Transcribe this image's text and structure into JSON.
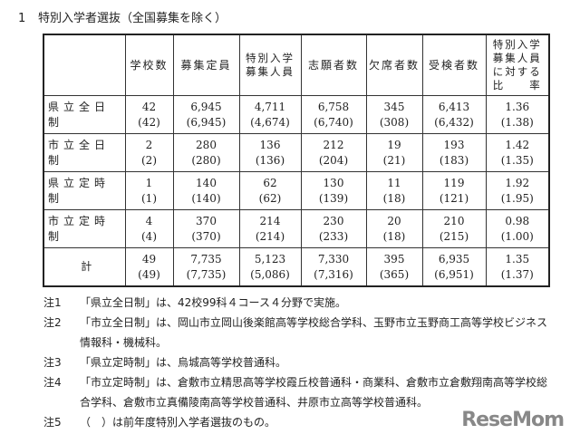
{
  "title": {
    "num": "1",
    "text": "特別入学者選抜（全国募集を除く）"
  },
  "table": {
    "headers": [
      "",
      "学校数",
      "募集定員",
      "特別入学募集人員",
      "志願者数",
      "欠席者数",
      "受検者数",
      "特別入学募集人員に対する比率"
    ],
    "header_lines": [
      [
        ""
      ],
      [
        "学校数"
      ],
      [
        "募集定員"
      ],
      [
        "特別入学",
        "募集人員"
      ],
      [
        "志願者数"
      ],
      [
        "欠席者数"
      ],
      [
        "受検者数"
      ],
      [
        "特別入学",
        "募集人員",
        "に対する",
        "比　　率"
      ]
    ],
    "rows": [
      {
        "label": "県立全日制",
        "values": [
          [
            "42",
            "(42)"
          ],
          [
            "6,945",
            "(6,945)"
          ],
          [
            "4,711",
            "(4,674)"
          ],
          [
            "6,758",
            "(6,740)"
          ],
          [
            "345",
            "(308)"
          ],
          [
            "6,413",
            "(6,432)"
          ],
          [
            "1.36",
            "(1.38)"
          ]
        ]
      },
      {
        "label": "市立全日制",
        "values": [
          [
            "2",
            "(2)"
          ],
          [
            "280",
            "(280)"
          ],
          [
            "136",
            "(136)"
          ],
          [
            "212",
            "(204)"
          ],
          [
            "19",
            "(21)"
          ],
          [
            "193",
            "(183)"
          ],
          [
            "1.42",
            "(1.35)"
          ]
        ]
      },
      {
        "label": "県立定時制",
        "values": [
          [
            "1",
            "(1)"
          ],
          [
            "140",
            "(140)"
          ],
          [
            "62",
            "(62)"
          ],
          [
            "130",
            "(139)"
          ],
          [
            "11",
            "(18)"
          ],
          [
            "119",
            "(121)"
          ],
          [
            "1.92",
            "(1.95)"
          ]
        ]
      },
      {
        "label": "市立定時制",
        "values": [
          [
            "4",
            "(4)"
          ],
          [
            "370",
            "(370)"
          ],
          [
            "214",
            "(214)"
          ],
          [
            "230",
            "(233)"
          ],
          [
            "20",
            "(18)"
          ],
          [
            "210",
            "(215)"
          ],
          [
            "0.98",
            "(1.00)"
          ]
        ]
      },
      {
        "label": "計",
        "values": [
          [
            "49",
            "(49)"
          ],
          [
            "7,735",
            "(7,735)"
          ],
          [
            "5,123",
            "(5,086)"
          ],
          [
            "7,330",
            "(7,316)"
          ],
          [
            "395",
            "(365)"
          ],
          [
            "6,935",
            "(6,951)"
          ],
          [
            "1.35",
            "(1.37)"
          ]
        ]
      }
    ]
  },
  "notes": [
    {
      "key": "注1",
      "text": "「県立全日制」は、42校99科４コース４分野で実施。"
    },
    {
      "key": "注2",
      "text": "「市立全日制」は、岡山市立岡山後楽館高等学校総合学科、玉野市立玉野商工高等学校ビジネス情報科・機械科。"
    },
    {
      "key": "注3",
      "text": "「県立定時制」は、烏城高等学校普通科。"
    },
    {
      "key": "注4",
      "text": "「市立定時制」は、倉敷市立精思高等学校霞丘校普通科・商業科、倉敷市立倉敷翔南高等学校総合学科、倉敷市立真備陵南高等学校普通科、井原市立高等学校普通科。"
    },
    {
      "key": "注5",
      "text": "（　）は前年度特別入学者選抜のもの。"
    }
  ],
  "watermark": "ReseMom"
}
